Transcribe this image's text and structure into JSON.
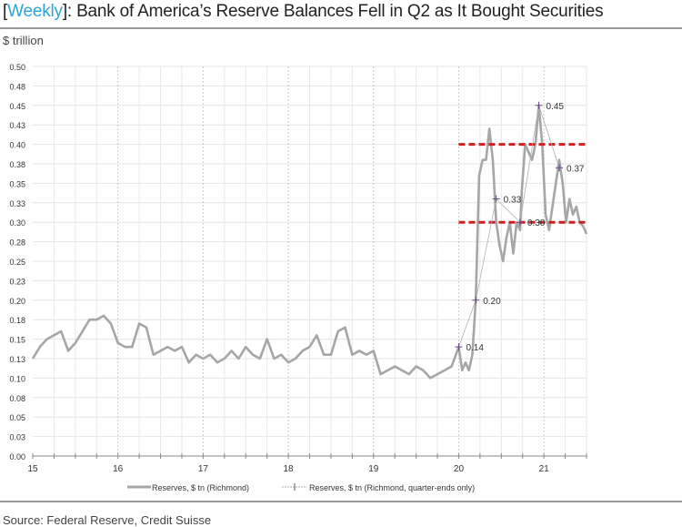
{
  "header": {
    "title_bracket_open": "[",
    "title_tag": "Weekly",
    "title_rest": "]: Bank of America’s Reserve Balances Fell in Q2 as It Bought Securities",
    "unit": "$ trillion"
  },
  "footer": {
    "source": "Source: Federal Reserve, Credit Suisse"
  },
  "chart_data": {
    "type": "line",
    "title": "[Weekly]: Bank of America’s Reserve Balances Fell in Q2 as It Bought Securities",
    "ylabel": "$ trillion",
    "xlabel": "",
    "xlim": [
      15,
      21.5
    ],
    "ylim": [
      0,
      0.5
    ],
    "x_ticks": [
      "15",
      "16",
      "17",
      "18",
      "19",
      "20",
      "21"
    ],
    "y_ticks": [
      "0.00",
      "0.03",
      "0.05",
      "0.08",
      "0.10",
      "0.13",
      "0.15",
      "0.18",
      "0.20",
      "0.23",
      "0.25",
      "0.28",
      "0.30",
      "0.33",
      "0.35",
      "0.38",
      "0.40",
      "0.43",
      "0.45",
      "0.48",
      "0.50"
    ],
    "grid": true,
    "legend_position": "bottom",
    "colors": {
      "weekly": "#a6a6a6",
      "quarter": "#b0b0b0",
      "ref": "#d11f1f"
    },
    "series": [
      {
        "name": "Reserves, $ tn (Richmond)",
        "monthly_start": 15,
        "monthly_values": [
          0.125,
          0.14,
          0.15,
          0.155,
          0.16,
          0.135,
          0.145,
          0.16,
          0.175,
          0.175,
          0.18,
          0.17,
          0.145,
          0.14,
          0.14,
          0.17,
          0.165,
          0.13,
          0.135,
          0.14,
          0.135,
          0.14,
          0.12,
          0.13,
          0.125,
          0.13,
          0.12,
          0.125,
          0.135,
          0.125,
          0.14,
          0.13,
          0.125,
          0.15,
          0.125,
          0.13,
          0.12,
          0.125,
          0.135,
          0.14,
          0.155,
          0.13,
          0.13,
          0.16,
          0.165,
          0.13,
          0.135,
          0.13,
          0.135,
          0.105,
          0.11,
          0.115,
          0.11,
          0.105,
          0.115,
          0.11,
          0.1,
          0.105,
          0.11,
          0.115
        ],
        "points": [
          [
            20.0,
            0.14
          ],
          [
            20.04,
            0.11
          ],
          [
            20.08,
            0.12
          ],
          [
            20.12,
            0.11
          ],
          [
            20.16,
            0.13
          ],
          [
            20.2,
            0.2
          ],
          [
            20.24,
            0.36
          ],
          [
            20.28,
            0.38
          ],
          [
            20.32,
            0.38
          ],
          [
            20.36,
            0.42
          ],
          [
            20.4,
            0.38
          ],
          [
            20.44,
            0.3
          ],
          [
            20.48,
            0.27
          ],
          [
            20.52,
            0.25
          ],
          [
            20.56,
            0.28
          ],
          [
            20.6,
            0.3
          ],
          [
            20.64,
            0.26
          ],
          [
            20.68,
            0.3
          ],
          [
            20.72,
            0.29
          ],
          [
            20.74,
            0.34
          ],
          [
            20.78,
            0.4
          ],
          [
            20.82,
            0.39
          ],
          [
            20.86,
            0.38
          ],
          [
            20.9,
            0.4
          ],
          [
            20.94,
            0.45
          ],
          [
            20.98,
            0.4
          ],
          [
            21.02,
            0.31
          ],
          [
            21.06,
            0.29
          ],
          [
            21.1,
            0.32
          ],
          [
            21.14,
            0.35
          ],
          [
            21.18,
            0.38
          ],
          [
            21.22,
            0.35
          ],
          [
            21.26,
            0.3
          ],
          [
            21.3,
            0.33
          ],
          [
            21.34,
            0.31
          ],
          [
            21.38,
            0.32
          ],
          [
            21.42,
            0.3
          ],
          [
            21.46,
            0.295
          ],
          [
            21.5,
            0.285
          ]
        ]
      },
      {
        "name": "Reserves, $ tn (Richmond, quarter-ends only)",
        "points": [
          [
            20.0,
            0.14
          ],
          [
            20.2,
            0.2
          ],
          [
            20.44,
            0.33
          ],
          [
            20.72,
            0.3
          ],
          [
            20.94,
            0.45
          ],
          [
            21.18,
            0.37
          ]
        ],
        "labels": [
          "0.14",
          "0.20",
          "0.33",
          "0.30",
          "0.45",
          "0.37"
        ]
      }
    ],
    "reference_lines": [
      {
        "y": 0.4,
        "from": 20,
        "to": 21.5
      },
      {
        "y": 0.3,
        "from": 20,
        "to": 21.5
      }
    ]
  }
}
